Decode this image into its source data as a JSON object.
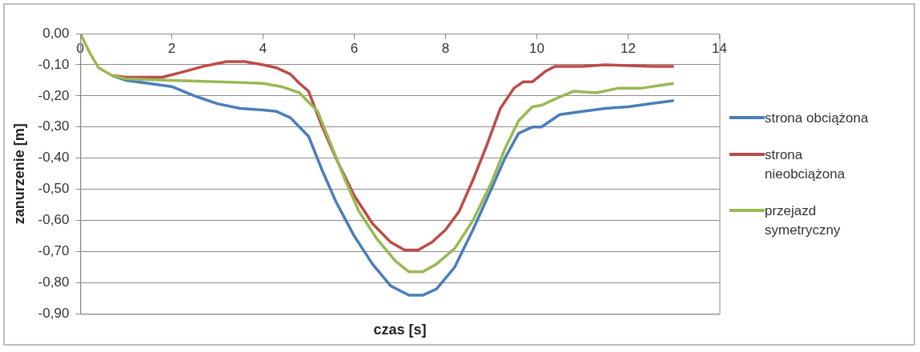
{
  "chart_data": {
    "type": "line",
    "xlabel": "czas [s]",
    "ylabel": "zanurzenie [m]",
    "xlim": [
      0,
      14
    ],
    "xticks": [
      0,
      2,
      4,
      6,
      8,
      10,
      12,
      14
    ],
    "ylim": [
      -0.9,
      0
    ],
    "yticks": [
      {
        "value": 0,
        "label": "0,00"
      },
      {
        "value": -0.1,
        "label": "-0,10"
      },
      {
        "value": -0.2,
        "label": "-0,20"
      },
      {
        "value": -0.3,
        "label": "-0,30"
      },
      {
        "value": -0.4,
        "label": "-0,40"
      },
      {
        "value": -0.5,
        "label": "-0,50"
      },
      {
        "value": -0.6,
        "label": "-0,60"
      },
      {
        "value": -0.7,
        "label": "-0,70"
      },
      {
        "value": -0.8,
        "label": "-0,80"
      },
      {
        "value": -0.9,
        "label": "-0,90"
      }
    ],
    "grid": "y",
    "legend": "right",
    "marker": "none",
    "line_style": "solid",
    "series": [
      {
        "name": "strona obciążona",
        "color": "#4a7ebb",
        "x": [
          0.7,
          1,
          1.5,
          2,
          2.5,
          3,
          3.5,
          4,
          4.3,
          4.6,
          4.8,
          5,
          5.3,
          5.6,
          6,
          6.4,
          6.8,
          7.2,
          7.5,
          7.8,
          8.2,
          8.6,
          9,
          9.3,
          9.6,
          9.9,
          10.1,
          10.5,
          11,
          11.5,
          12,
          12.5,
          13
        ],
        "values": [
          -0.135,
          -0.15,
          -0.16,
          -0.17,
          -0.2,
          -0.225,
          -0.24,
          -0.245,
          -0.25,
          -0.27,
          -0.3,
          -0.33,
          -0.44,
          -0.54,
          -0.65,
          -0.74,
          -0.81,
          -0.84,
          -0.84,
          -0.82,
          -0.75,
          -0.63,
          -0.5,
          -0.4,
          -0.32,
          -0.3,
          -0.3,
          -0.26,
          -0.25,
          -0.24,
          -0.235,
          -0.225,
          -0.215
        ]
      },
      {
        "name": "strona nieobciążona",
        "color": "#be4b48",
        "x": [
          0.7,
          1,
          1.8,
          2.2,
          2.7,
          3.2,
          3.6,
          4,
          4.3,
          4.6,
          4.8,
          5,
          5.3,
          5.6,
          6,
          6.4,
          6.8,
          7.1,
          7.4,
          7.7,
          8,
          8.3,
          8.6,
          8.9,
          9.2,
          9.5,
          9.7,
          9.9,
          10.2,
          10.4,
          11,
          11.5,
          12,
          12.5,
          13
        ],
        "values": [
          -0.135,
          -0.14,
          -0.14,
          -0.125,
          -0.105,
          -0.09,
          -0.09,
          -0.1,
          -0.11,
          -0.13,
          -0.16,
          -0.185,
          -0.3,
          -0.4,
          -0.52,
          -0.61,
          -0.67,
          -0.695,
          -0.695,
          -0.67,
          -0.63,
          -0.57,
          -0.47,
          -0.36,
          -0.24,
          -0.175,
          -0.155,
          -0.155,
          -0.12,
          -0.105,
          -0.105,
          -0.1,
          -0.103,
          -0.105,
          -0.105
        ]
      },
      {
        "name": "przejazd symetryczny",
        "color": "#98b954",
        "x": [
          0,
          0.2,
          0.4,
          0.7,
          1,
          2,
          3,
          3.5,
          4,
          4.4,
          4.8,
          5,
          5.2,
          5.5,
          5.8,
          6.1,
          6.5,
          6.9,
          7.2,
          7.5,
          7.8,
          8.2,
          8.6,
          9,
          9.3,
          9.6,
          9.9,
          10.1,
          10.4,
          10.8,
          11.3,
          11.8,
          12.3,
          13
        ],
        "values": [
          0,
          -0.06,
          -0.11,
          -0.135,
          -0.145,
          -0.15,
          -0.155,
          -0.157,
          -0.16,
          -0.17,
          -0.19,
          -0.22,
          -0.25,
          -0.36,
          -0.47,
          -0.57,
          -0.66,
          -0.73,
          -0.765,
          -0.765,
          -0.74,
          -0.69,
          -0.6,
          -0.48,
          -0.37,
          -0.28,
          -0.235,
          -0.23,
          -0.21,
          -0.185,
          -0.19,
          -0.175,
          -0.175,
          -0.16
        ]
      }
    ]
  }
}
